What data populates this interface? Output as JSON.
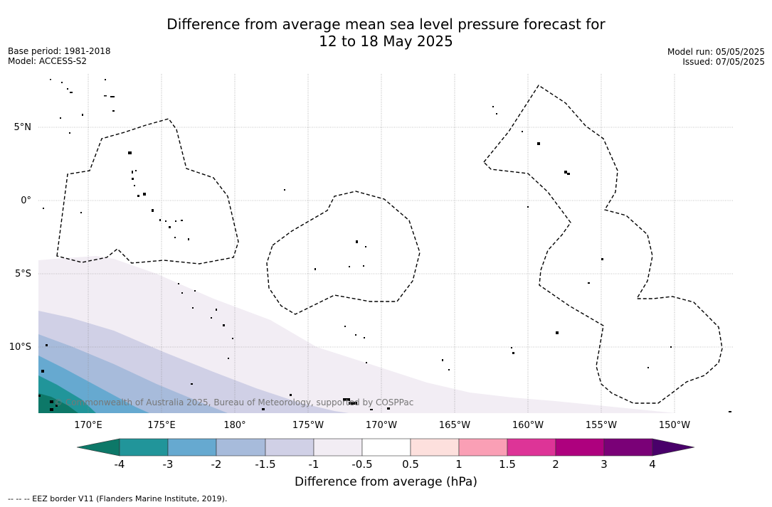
{
  "title": {
    "line1": "Difference from average mean sea level pressure forecast for",
    "line2": "12 to 18 May 2025"
  },
  "meta": {
    "base_period": "Base period: 1981-2018",
    "model": "Model: ACCESS-S2",
    "model_run": "Model run: 05/05/2025",
    "issued": "Issued: 07/05/2025"
  },
  "map": {
    "copyright": "© Commonwealth of Australia 2025, Bureau of Meteorology, supported by COSPPac",
    "lon_labels": [
      "170°E",
      "175°E",
      "180°",
      "175°W",
      "170°W",
      "165°W",
      "160°W",
      "155°W",
      "150°W"
    ],
    "lat_labels": [
      "5°N",
      "0°",
      "5°S",
      "10°S"
    ],
    "colors": {
      "lt_-4": "#0d7868",
      "-4_-3": "#21959a",
      "-3_-2": "#66a9d0",
      "-2_-1.5": "#a7bbdb",
      "-1.5_-1": "#d0d0e6",
      "-1_-0.5": "#f2edf4",
      "-0.5_0.5": "#ffffff",
      "0.5_1": "#fde0dd",
      "1_1.5": "#fa9fb5",
      "1.5_2": "#dd3497",
      "2_3": "#ae017e",
      "3_4": "#7a0177",
      "gt_4": "#49006a"
    }
  },
  "colorbar": {
    "ticks": [
      "-4",
      "-3",
      "-2",
      "-1.5",
      "-1",
      "-0.5",
      "0.5",
      "1",
      "1.5",
      "2",
      "3",
      "4"
    ],
    "label": "Difference from average (hPa)"
  },
  "footer": "--  --  -- EEZ border V11 (Flanders Marine Institute, 2019)."
}
